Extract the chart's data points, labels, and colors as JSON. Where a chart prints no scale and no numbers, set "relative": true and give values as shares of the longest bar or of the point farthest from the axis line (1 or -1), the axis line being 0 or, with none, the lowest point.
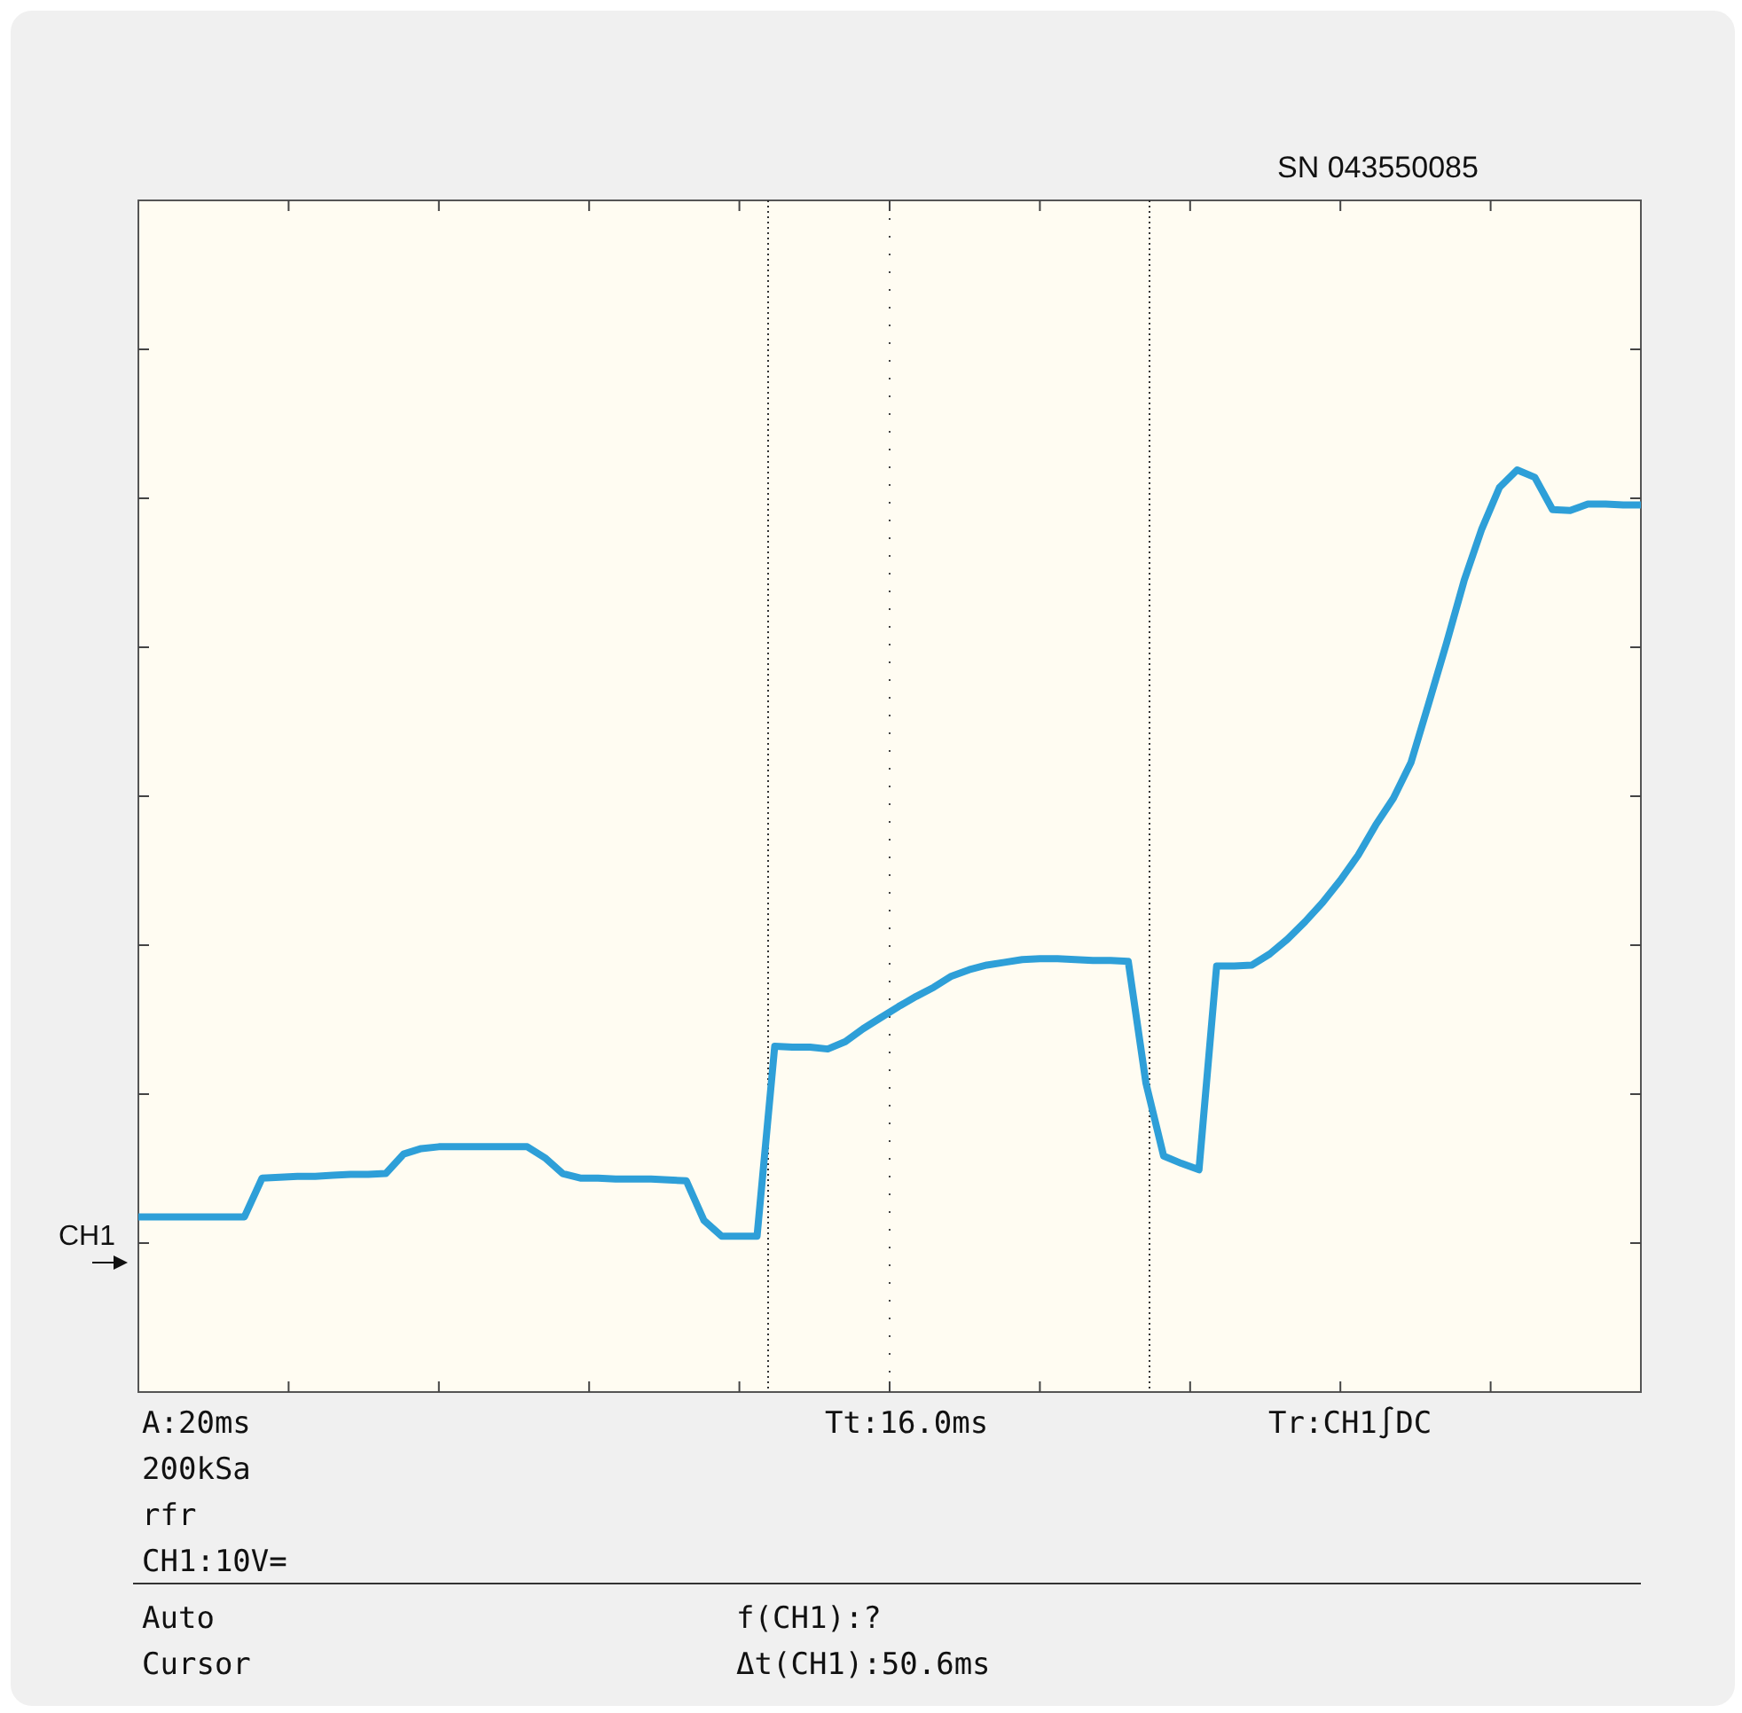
{
  "chart_data": {
    "type": "line",
    "relative": true,
    "grid": true,
    "categories": [
      null,
      null,
      null,
      null,
      null,
      null,
      null,
      null,
      null,
      null,
      null,
      null,
      null,
      null,
      null,
      null,
      null,
      null,
      null,
      null,
      null,
      null,
      null,
      null,
      null,
      null,
      null,
      null,
      null,
      null,
      null,
      null,
      null,
      null,
      null,
      null,
      null,
      null,
      null,
      null,
      null,
      null,
      null,
      null,
      null,
      null,
      null,
      null,
      null,
      null,
      null,
      null,
      null,
      null,
      null,
      null,
      null,
      null,
      null,
      null,
      null,
      null,
      null,
      null,
      null,
      null,
      null,
      null,
      null,
      null,
      null,
      null,
      null,
      null,
      null,
      null,
      null,
      null,
      null,
      null,
      null,
      null,
      null,
      null,
      null,
      null
    ],
    "series": [
      {
        "color": "#2e9fd8",
        "values": [
          0.19,
          0.19,
          0.19,
          0.19,
          0.19,
          0.19,
          0.19,
          0.232,
          0.233,
          0.234,
          0.234,
          0.235,
          0.236,
          0.236,
          0.237,
          0.258,
          0.264,
          0.266,
          0.266,
          0.266,
          0.266,
          0.266,
          0.266,
          0.254,
          0.237,
          0.232,
          0.232,
          0.231,
          0.231,
          0.231,
          0.23,
          0.229,
          0.186,
          0.169,
          0.169,
          0.169,
          0.375,
          0.374,
          0.374,
          0.372,
          0.38,
          0.394,
          0.406,
          0.418,
          0.429,
          0.439,
          0.451,
          0.458,
          0.463,
          0.466,
          0.469,
          0.47,
          0.47,
          0.469,
          0.468,
          0.468,
          0.467,
          0.335,
          0.256,
          0.248,
          0.241,
          0.462,
          0.462,
          0.463,
          0.475,
          0.491,
          0.51,
          0.531,
          0.555,
          0.582,
          0.615,
          0.644,
          0.683,
          0.747,
          0.812,
          0.88,
          0.936,
          0.981,
          1,
          0.992,
          0.957,
          0.956,
          0.963,
          0.963,
          0.962,
          0.962
        ]
      }
    ],
    "annotations": [
      "SN 043550085",
      "CH1",
      "A:20ms",
      "200kSa",
      "rfr",
      "CH1:10V=",
      "Tt:16.0ms",
      "Tr:CH1∫DC",
      "Auto",
      "f(CH1):?",
      "Cursor",
      "Δt(CH1):50.6ms"
    ]
  }
}
